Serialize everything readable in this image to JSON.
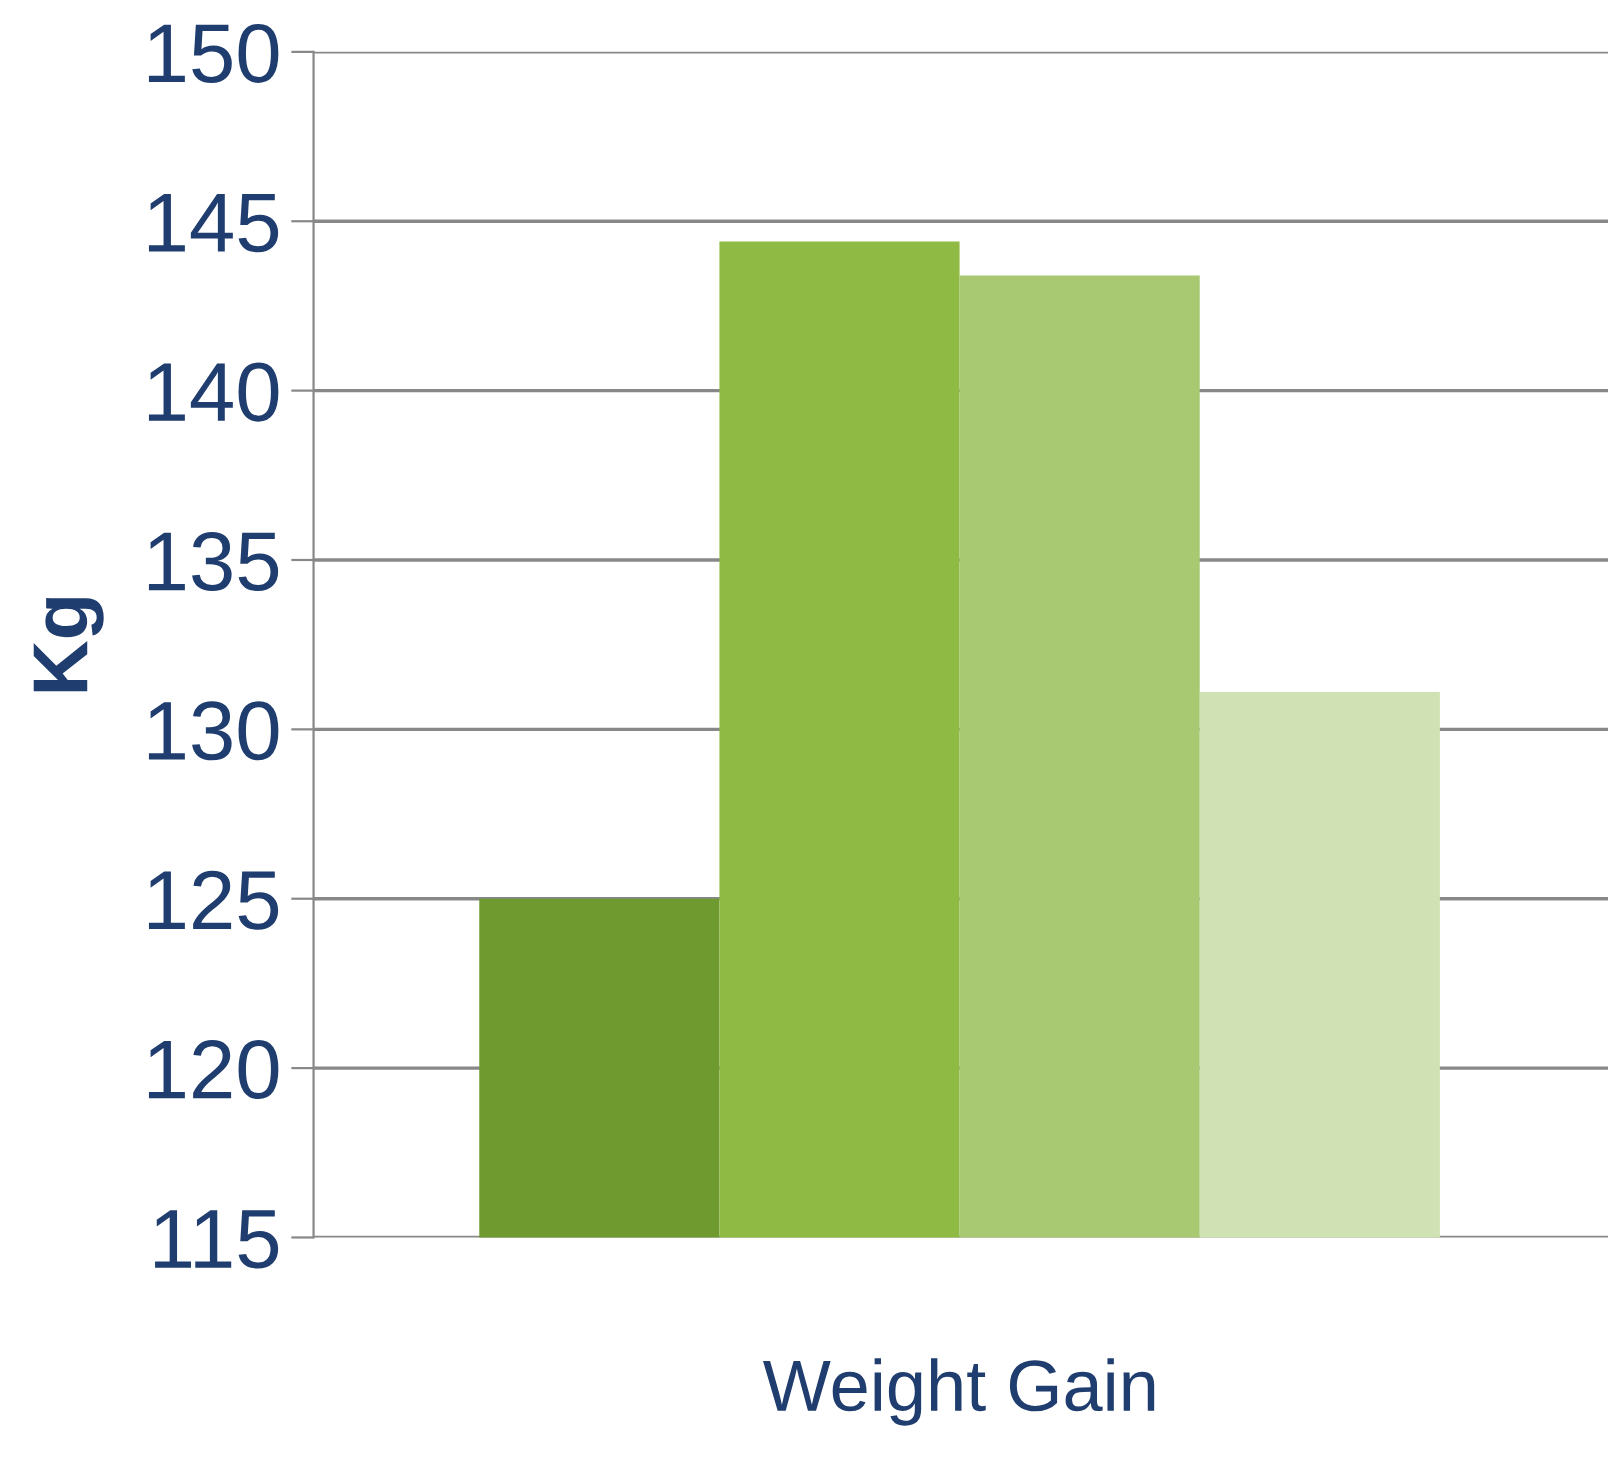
{
  "chart_data": {
    "type": "bar",
    "xlabel": "Weight Gain",
    "ylabel": "Kg",
    "categories": [
      null,
      null,
      null,
      null
    ],
    "values": [
      125,
      144.4,
      143.4,
      131.1
    ],
    "colors": [
      "#6e9a30",
      "#8fba44",
      "#a8c872",
      "#d0e2b4"
    ],
    "ylim": [
      115,
      150
    ],
    "yticks": [
      115,
      120,
      125,
      130,
      135,
      140,
      145,
      150
    ],
    "grid": "y"
  }
}
